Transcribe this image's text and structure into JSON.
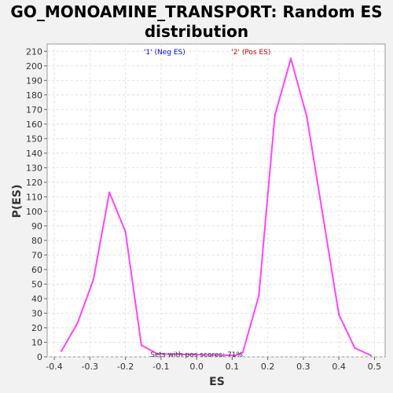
{
  "chart_data": {
    "type": "line",
    "title_line1": "GO_MONOAMINE_TRANSPORT: Random ES",
    "title_line2": "distribution",
    "xlabel": "ES",
    "ylabel": "P(ES)",
    "xlim": [
      -0.42,
      0.53
    ],
    "ylim": [
      0,
      215
    ],
    "x_ticks": [
      "-0.4",
      "-0.3",
      "-0.2",
      "-0.1",
      "0.0",
      "0.1",
      "0.2",
      "0.3",
      "0.4",
      "0.5"
    ],
    "x_tick_values": [
      -0.4,
      -0.3,
      -0.2,
      -0.1,
      0.0,
      0.1,
      0.2,
      0.3,
      0.4,
      0.5
    ],
    "y_ticks": [
      "0",
      "10",
      "20",
      "30",
      "40",
      "50",
      "60",
      "70",
      "80",
      "90",
      "100",
      "110",
      "120",
      "130",
      "140",
      "150",
      "160",
      "170",
      "180",
      "190",
      "200",
      "210"
    ],
    "y_tick_values": [
      0,
      10,
      20,
      30,
      40,
      50,
      60,
      70,
      80,
      90,
      100,
      110,
      120,
      130,
      140,
      150,
      160,
      170,
      180,
      190,
      200,
      210
    ],
    "grid": true,
    "legend": [
      {
        "label": "'1' (Neg ES)",
        "color": "#0000ff",
        "x_at": -0.09
      },
      {
        "label": "'2' (Pos ES)",
        "color": "#cc0000",
        "x_at": 0.153
      }
    ],
    "annotation": "Sets with pos scores: 71%",
    "annotation_x": -0.13,
    "series": [
      {
        "color": "#ff44ff",
        "x": [
          -0.38,
          -0.335,
          -0.29,
          -0.245,
          -0.2,
          -0.155,
          -0.11,
          0.11,
          0.13,
          0.175,
          0.22,
          0.265,
          0.31,
          0.355,
          0.4,
          0.445,
          0.49
        ],
        "y": [
          4,
          23,
          53,
          113,
          86,
          8,
          2,
          1,
          3,
          42,
          166,
          205,
          165,
          97,
          29,
          6,
          1
        ]
      }
    ]
  }
}
